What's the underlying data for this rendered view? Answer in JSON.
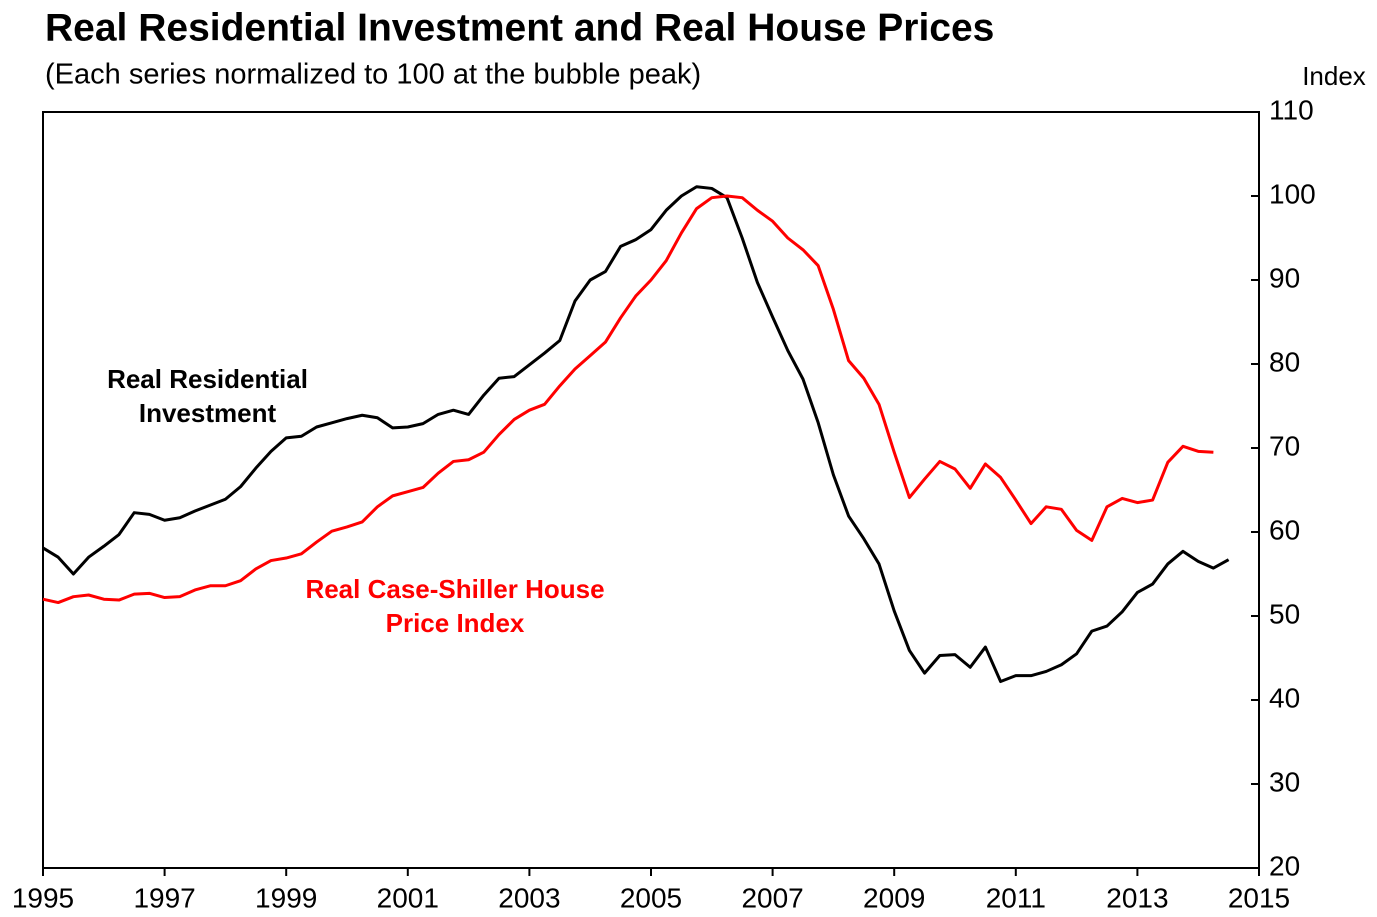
{
  "chart_data": {
    "type": "line",
    "title": "Real Residential Investment and Real House Prices",
    "subtitle": "(Each series normalized to 100 at the bubble peak)",
    "y_axis_label": "Index",
    "x": [
      1995,
      1995.25,
      1995.5,
      1995.75,
      1996,
      1996.25,
      1996.5,
      1996.75,
      1997,
      1997.25,
      1997.5,
      1997.75,
      1998,
      1998.25,
      1998.5,
      1998.75,
      1999,
      1999.25,
      1999.5,
      1999.75,
      2000,
      2000.25,
      2000.5,
      2000.75,
      2001,
      2001.25,
      2001.5,
      2001.75,
      2002,
      2002.25,
      2002.5,
      2002.75,
      2003,
      2003.25,
      2003.5,
      2003.75,
      2004,
      2004.25,
      2004.5,
      2004.75,
      2005,
      2005.25,
      2005.5,
      2005.75,
      2006,
      2006.25,
      2006.5,
      2006.75,
      2007,
      2007.25,
      2007.5,
      2007.75,
      2008,
      2008.25,
      2008.5,
      2008.75,
      2009,
      2009.25,
      2009.5,
      2009.75,
      2010,
      2010.25,
      2010.5,
      2010.75,
      2011,
      2011.25,
      2011.5,
      2011.75,
      2012,
      2012.25,
      2012.5,
      2012.75,
      2013,
      2013.25,
      2013.5,
      2013.75,
      2014,
      2014.25,
      2014.5
    ],
    "series": [
      {
        "name": "Real Residential Investment",
        "color": "#000000",
        "values": [
          58.1,
          57.0,
          55.0,
          57.0,
          58.3,
          59.7,
          62.3,
          62.1,
          61.4,
          61.7,
          62.5,
          63.2,
          63.9,
          65.4,
          67.6,
          69.6,
          71.2,
          71.4,
          72.5,
          73.0,
          73.5,
          73.9,
          73.6,
          72.4,
          72.5,
          72.9,
          74.0,
          74.5,
          74.0,
          76.3,
          78.3,
          78.5,
          79.9,
          81.3,
          82.8,
          87.5,
          90.0,
          91.0,
          94.0,
          94.8,
          96.0,
          98.3,
          100.0,
          101.1,
          100.9,
          99.8,
          95.0,
          89.7,
          85.6,
          81.6,
          78.2,
          73.0,
          66.8,
          61.9,
          59.2,
          56.2,
          50.6,
          45.9,
          43.2,
          45.3,
          45.4,
          43.9,
          46.3,
          42.2,
          42.9,
          42.9,
          43.4,
          44.2,
          45.5,
          48.2,
          48.8,
          50.5,
          52.8,
          53.8,
          56.2,
          57.7,
          56.5,
          55.7,
          56.7
        ]
      },
      {
        "name": "Real Case-Shiller House Price Index",
        "color": "#ff0000",
        "values": [
          52.0,
          51.6,
          52.3,
          52.5,
          52.0,
          51.9,
          52.6,
          52.7,
          52.2,
          52.3,
          53.1,
          53.6,
          53.6,
          54.2,
          55.6,
          56.6,
          56.9,
          57.4,
          58.8,
          60.1,
          60.6,
          61.2,
          63.0,
          64.3,
          64.8,
          65.3,
          67.0,
          68.4,
          68.6,
          69.5,
          71.6,
          73.4,
          74.5,
          75.2,
          77.4,
          79.4,
          81.0,
          82.6,
          85.5,
          88.1,
          90.0,
          92.3,
          95.6,
          98.5,
          99.8,
          100.0,
          99.8,
          98.3,
          97.0,
          95.0,
          93.6,
          91.7,
          86.5,
          80.4,
          78.3,
          75.2,
          69.5,
          64.1,
          66.3,
          68.4,
          67.5,
          65.2,
          68.1,
          66.5,
          63.8,
          61.0,
          63.0,
          62.7,
          60.2,
          59.0,
          63.0,
          64.0,
          63.5,
          63.8,
          68.3,
          70.2,
          69.6,
          69.5,
          null
        ]
      }
    ],
    "xlim": [
      1995,
      2015
    ],
    "xticks": [
      1995,
      1997,
      1999,
      2001,
      2003,
      2005,
      2007,
      2009,
      2011,
      2013,
      2015
    ],
    "ylim": [
      20,
      110
    ],
    "yticks": [
      20,
      30,
      40,
      50,
      60,
      70,
      80,
      90,
      100,
      110
    ],
    "y_axis_side": "right",
    "grid": false
  }
}
